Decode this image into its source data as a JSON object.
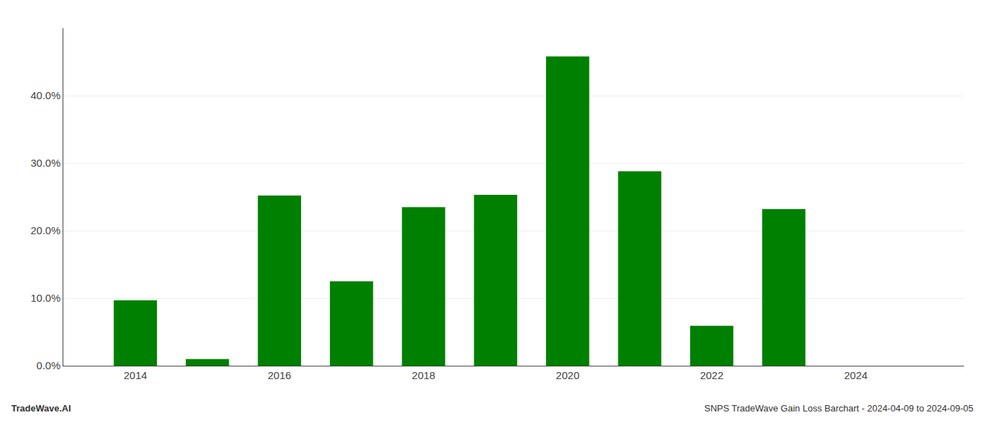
{
  "chart_data": {
    "type": "bar",
    "x": [
      2014,
      2015,
      2016,
      2017,
      2018,
      2019,
      2020,
      2021,
      2022,
      2023,
      2024
    ],
    "values": [
      0.097,
      0.01,
      0.252,
      0.125,
      0.235,
      0.253,
      0.458,
      0.288,
      0.059,
      0.232,
      0.0
    ],
    "color": "#008000",
    "xlim": [
      2013.0,
      2025.5
    ],
    "xticks": [
      2014,
      2016,
      2018,
      2020,
      2022,
      2024
    ],
    "ylim": [
      0.0,
      0.5
    ],
    "yticks": [
      {
        "value": 0.0,
        "label": "0.0%"
      },
      {
        "value": 0.1,
        "label": "10.0%"
      },
      {
        "value": 0.2,
        "label": "20.0%"
      },
      {
        "value": 0.3,
        "label": "30.0%"
      },
      {
        "value": 0.4,
        "label": "40.0%"
      }
    ],
    "grid": true,
    "annotations": [
      "TradeWave.AI",
      "SNPS TradeWave Gain Loss Barchart - 2024-04-09 to 2024-09-05"
    ]
  }
}
